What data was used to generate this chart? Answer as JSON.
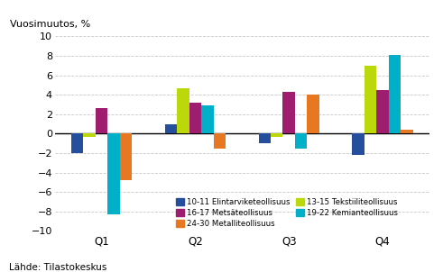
{
  "quarters": [
    "Q1",
    "Q2",
    "Q3",
    "Q4"
  ],
  "series": {
    "10-11 Elintarviketeollisuus": [
      -2.0,
      1.0,
      -1.0,
      -2.2
    ],
    "13-15 Tekstiiliteollisuus": [
      -0.3,
      4.7,
      -0.3,
      7.0
    ],
    "16-17 Metsäteollisuus": [
      2.6,
      3.2,
      4.3,
      4.5
    ],
    "19-22 Kemianteollisuus": [
      -8.3,
      2.9,
      -1.5,
      8.1
    ],
    "24-30 Metalliteollisuus": [
      -4.8,
      -1.5,
      4.0,
      0.4
    ]
  },
  "colors": {
    "10-11 Elintarviketeollisuus": "#254f9c",
    "13-15 Tekstiiliteollisuus": "#bad80a",
    "16-17 Metsäteollisuus": "#9e1d6e",
    "19-22 Kemianteollisuus": "#00b0c8",
    "24-30 Metalliteollisuus": "#e87722"
  },
  "ylabel": "Vuosimuutos, %",
  "ylim": [
    -10,
    10
  ],
  "yticks": [
    -10,
    -8,
    -6,
    -4,
    -2,
    0,
    2,
    4,
    6,
    8,
    10
  ],
  "footnote": "Lähde: Tilastokeskus",
  "background_color": "#ffffff",
  "grid_color": "#c8c8c8"
}
